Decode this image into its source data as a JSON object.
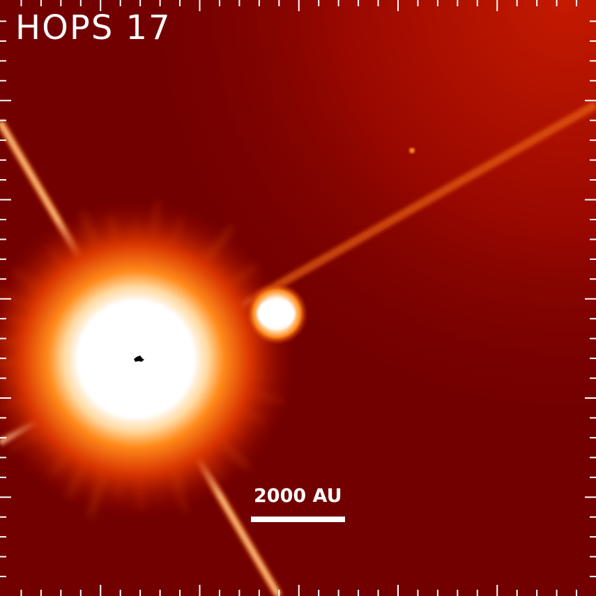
{
  "image": {
    "title": "HOPS 17",
    "scale_bar_label": "2000 AU",
    "colormap": "red-temperature",
    "colors": {
      "background": "#720000",
      "diffuse_glow": "#b01000",
      "saturated_core": "#ffffff",
      "halo": "#ff8a1a",
      "ticks": "#ffffff"
    }
  }
}
